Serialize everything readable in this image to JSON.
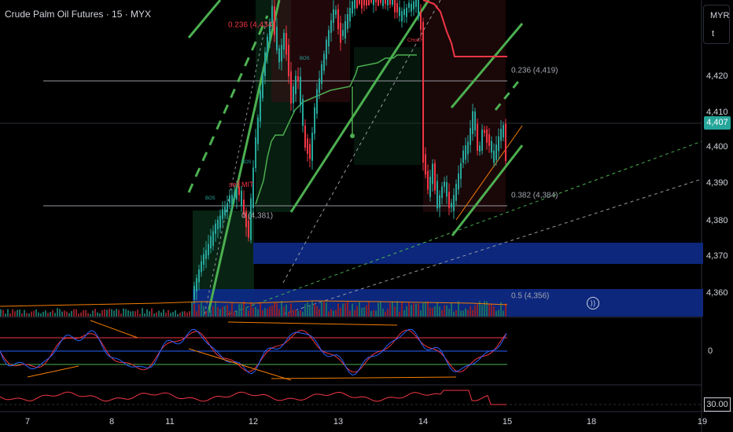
{
  "header": {
    "title": "Crude Palm Oil Futures · 15 · MYX"
  },
  "currency": {
    "code": "MYR",
    "extra": "t"
  },
  "price_scale": {
    "labels": [
      "4,420",
      "4,410",
      "4,400",
      "4,390",
      "4,380",
      "4,370",
      "4,360"
    ],
    "current_price": "4,407"
  },
  "fib_levels": {
    "top": "0.236 (4,434)",
    "right_236": "0.236 (4,419)",
    "right_382": "0.382 (4,384)",
    "right_50": "0.5 (4,356)",
    "left_0": "0 (4,381)"
  },
  "annotations": {
    "sell": "sell MIT",
    "bos": "BOS",
    "choch": "CHoCH"
  },
  "oscillator": {
    "zero_label": "0"
  },
  "rsi": {
    "value": "30.00"
  },
  "time_axis": {
    "labels": [
      "7",
      "8",
      "11",
      "12",
      "13",
      "14",
      "15",
      "18",
      "19"
    ]
  },
  "chart_data": {
    "type": "candlestick",
    "symbol": "Crude Palm Oil Futures",
    "interval": "15",
    "exchange": "MYX",
    "currency": "MYR",
    "y_ticks": [
      4360,
      4370,
      4380,
      4390,
      4400,
      4410,
      4420
    ],
    "last_price": 4407,
    "fib_levels": [
      {
        "ratio": 0.236,
        "price": 4434
      },
      {
        "ratio": 0.236,
        "price": 4419
      },
      {
        "ratio": 0.382,
        "price": 4384
      },
      {
        "ratio": 0.5,
        "price": 4356
      },
      {
        "ratio": 0,
        "price": 4381
      }
    ],
    "x_ticks": [
      "7",
      "8",
      "11",
      "12",
      "13",
      "14",
      "15",
      "18",
      "19"
    ],
    "colors": {
      "up": "#26a69a",
      "down": "#f23645",
      "zone": "#0d2b8a",
      "trend": "#4caf50"
    }
  }
}
